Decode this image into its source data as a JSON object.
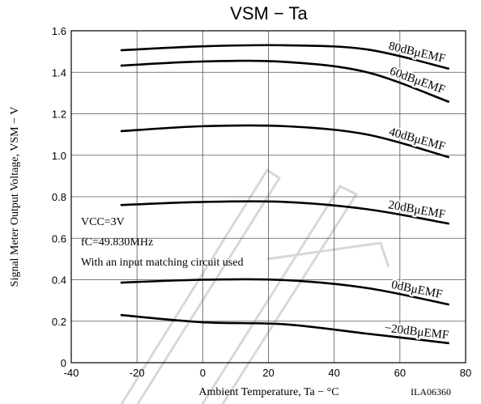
{
  "chart_data": {
    "type": "line",
    "title": "VSM − Ta",
    "x_label": "Ambient Temperature, Ta  −  °C",
    "y_label": "Signal Meter Output Voltage, VSM  −  V",
    "annotations": [
      "VCC=3V",
      "fC=49.830MHz",
      "With an input matching circuit used"
    ],
    "code": "ILA06360",
    "x": [
      -25,
      0,
      25,
      50,
      75
    ],
    "series": [
      {
        "name": "80dBμEMF",
        "color": "#000000",
        "values": [
          1.506,
          1.525,
          1.53,
          1.51,
          1.417
        ]
      },
      {
        "name": "60dBμEMF",
        "color": "#000000",
        "values": [
          1.432,
          1.452,
          1.45,
          1.4,
          1.257
        ]
      },
      {
        "name": "40dBμEMF",
        "color": "#000000",
        "values": [
          1.116,
          1.14,
          1.14,
          1.1,
          0.99
        ]
      },
      {
        "name": "20dBμEMF",
        "color": "#000000",
        "values": [
          0.76,
          0.775,
          0.775,
          0.74,
          0.67
        ]
      },
      {
        "name": "0dBμEMF",
        "color": "#000000",
        "values": [
          0.386,
          0.4,
          0.398,
          0.36,
          0.28
        ]
      },
      {
        "name": "−20dBμEMF",
        "color": "#000000",
        "values": [
          0.23,
          0.195,
          0.185,
          0.14,
          0.094
        ]
      }
    ],
    "xlim": [
      -40,
      80
    ],
    "xticks": [
      -40,
      -20,
      0,
      20,
      40,
      60,
      80
    ],
    "ylim": [
      0,
      1.6
    ],
    "yticks": [
      0,
      0.2,
      0.4,
      0.6,
      0.8,
      {
        "value": 1,
        "label": "1.0"
      },
      1.2,
      1.4,
      1.6
    ],
    "grid": true
  }
}
